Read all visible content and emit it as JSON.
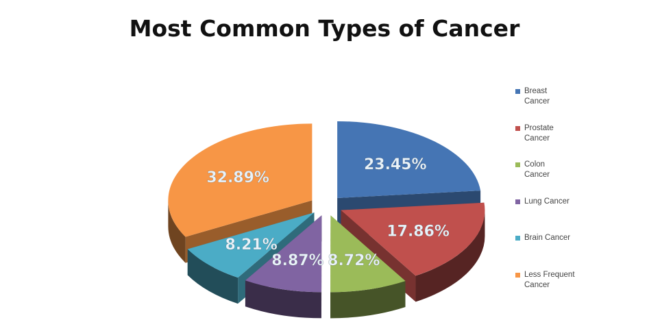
{
  "chart_data": {
    "type": "pie",
    "title": "Most Common Types of Cancer",
    "legend_position": "right",
    "slices": [
      {
        "label": "Breast Cancer",
        "legend_lines": [
          "Breast",
          "Cancer"
        ],
        "value": 23.45,
        "value_label": "23.45%",
        "color": "#4575B4"
      },
      {
        "label": "Prostate Cancer",
        "legend_lines": [
          "Prostate",
          "Cancer"
        ],
        "value": 17.86,
        "value_label": "17.86%",
        "color": "#C0504D"
      },
      {
        "label": "Colon Cancer",
        "legend_lines": [
          "Colon",
          "Cancer"
        ],
        "value": 8.72,
        "value_label": "8.72%",
        "color": "#9BBB59"
      },
      {
        "label": "Lung Cancer",
        "legend_lines": [
          "Lung Cancer"
        ],
        "value": 8.87,
        "value_label": "8.87%",
        "color": "#8064A2"
      },
      {
        "label": "Brain Cancer",
        "legend_lines": [
          "Brain Cancer"
        ],
        "value": 8.21,
        "value_label": "8.21%",
        "color": "#4BACC6"
      },
      {
        "label": "Less Frequent Cancer",
        "legend_lines": [
          "Less Frequent",
          "Cancer"
        ],
        "value": 32.89,
        "value_label": "32.89%",
        "color": "#F79646"
      }
    ]
  }
}
